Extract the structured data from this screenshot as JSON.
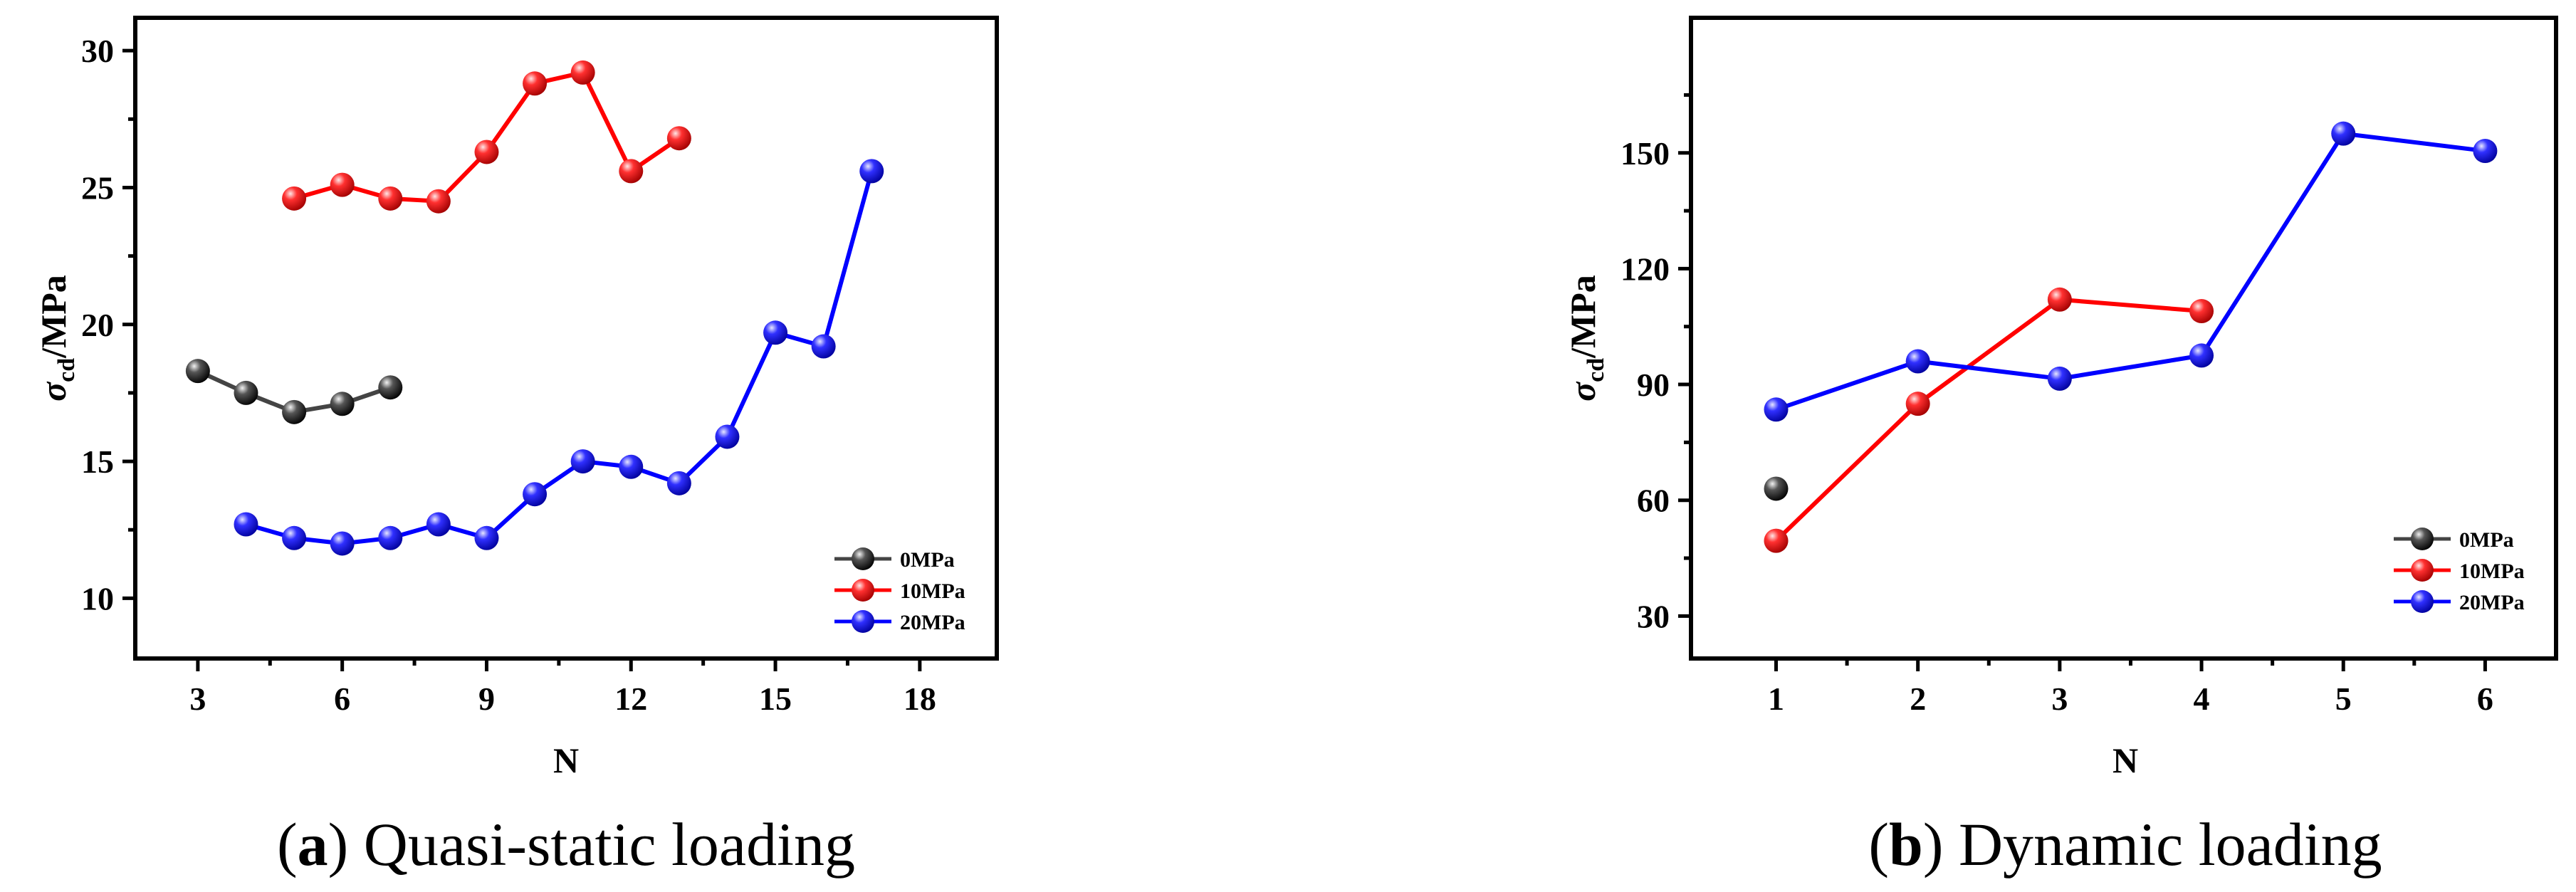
{
  "chart_data": [
    {
      "type": "line",
      "caption": {
        "letter": "a",
        "text": "Quasi-static loading"
      },
      "xlabel": "N",
      "ylabel": {
        "base": "σ",
        "sub": "cd",
        "unit": "/MPa"
      },
      "xlim": [
        1.7,
        19.6
      ],
      "ylim": [
        7.8,
        31.2
      ],
      "xticks": [
        3,
        6,
        9,
        12,
        15,
        18
      ],
      "yticks": [
        10,
        15,
        20,
        25,
        30
      ],
      "legend_position": "bottom-right",
      "series": [
        {
          "name": "0MPa",
          "color": "#000000",
          "x": [
            3,
            4,
            5,
            6,
            7
          ],
          "y": [
            18.3,
            17.5,
            16.8,
            17.1,
            17.7
          ]
        },
        {
          "name": "10MPa",
          "color": "#ff0000",
          "x": [
            5,
            6,
            7,
            8,
            9,
            10,
            11,
            12,
            13
          ],
          "y": [
            24.6,
            25.1,
            24.6,
            24.5,
            26.3,
            28.8,
            29.2,
            25.6,
            26.8
          ]
        },
        {
          "name": "20MPa",
          "color": "#0000ff",
          "x": [
            4,
            5,
            6,
            7,
            8,
            9,
            10,
            11,
            12,
            13,
            14,
            15,
            16,
            17
          ],
          "y": [
            12.7,
            12.2,
            12.0,
            12.2,
            12.7,
            12.2,
            13.8,
            15.0,
            14.8,
            14.2,
            15.9,
            19.7,
            19.2,
            25.6
          ]
        }
      ]
    },
    {
      "type": "line",
      "caption": {
        "letter": "b",
        "text": "Dynamic loading"
      },
      "xlabel": "N",
      "ylabel": {
        "base": "σ",
        "sub": "cd",
        "unit": "/MPa"
      },
      "xlim": [
        0.4,
        6.5
      ],
      "ylim": [
        19,
        185
      ],
      "xticks": [
        1,
        2,
        3,
        4,
        5,
        6
      ],
      "yticks": [
        30,
        60,
        90,
        120,
        150
      ],
      "legend_position": "bottom-right",
      "series": [
        {
          "name": "0MPa",
          "color": "#000000",
          "x": [
            1
          ],
          "y": [
            63
          ]
        },
        {
          "name": "10MPa",
          "color": "#ff0000",
          "x": [
            1,
            2,
            3,
            4
          ],
          "y": [
            49.5,
            85,
            112,
            109
          ]
        },
        {
          "name": "20MPa",
          "color": "#0000ff",
          "x": [
            1,
            2,
            3,
            4,
            5,
            6
          ],
          "y": [
            83.5,
            96,
            91.5,
            97.5,
            155,
            150.5
          ]
        }
      ]
    }
  ]
}
